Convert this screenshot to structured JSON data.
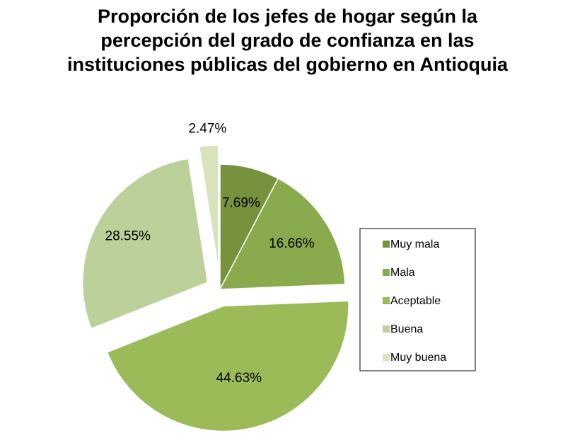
{
  "chart_data": {
    "type": "pie",
    "title": "Proporción de los jefes de hogar según la percepción del grado de confianza en las instituciones públicas del gobierno en Antioquia",
    "categories": [
      "Muy mala",
      "Mala",
      "Aceptable",
      "Buena",
      "Muy buena"
    ],
    "values": [
      7.69,
      16.66,
      44.63,
      28.55,
      2.47
    ],
    "labels": [
      "7.69%",
      "16.66%",
      "44.63%",
      "28.55%",
      "2.47%"
    ],
    "colors": [
      "#76923c",
      "#8aaa4e",
      "#9bbb59",
      "#bcd09a",
      "#d6e3bc"
    ],
    "exploded": [
      false,
      false,
      true,
      true,
      true
    ],
    "legend_position": "right"
  }
}
